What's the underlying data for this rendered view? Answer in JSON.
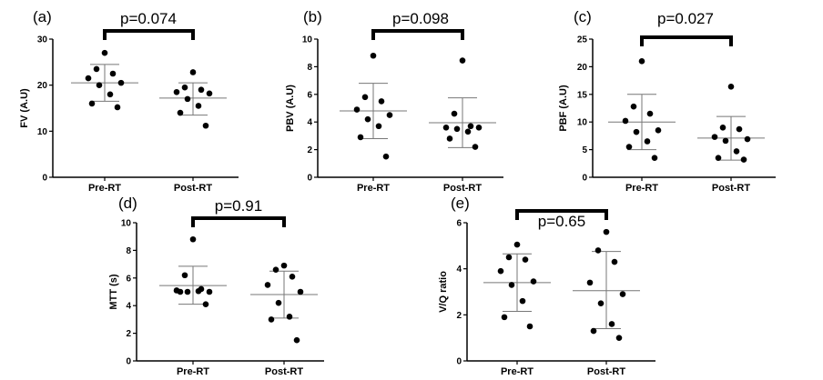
{
  "chart_data": [
    {
      "type": "scatter",
      "panel_label": "(a)",
      "ylabel": "FV (A.U)",
      "categories": [
        "Pre-RT",
        "Post-RT"
      ],
      "ylim": [
        0,
        30
      ],
      "yticks": [
        0,
        10,
        20,
        30
      ],
      "p_value": "p=0.074",
      "series": [
        {
          "name": "Pre-RT",
          "mean": 20.5,
          "sd_low": 16.5,
          "sd_high": 24.5,
          "values": [
            27,
            23.5,
            22.5,
            21.5,
            20.5,
            20,
            18,
            16,
            15.2
          ]
        },
        {
          "name": "Post-RT",
          "mean": 17.2,
          "sd_low": 13.5,
          "sd_high": 20.5,
          "values": [
            22.8,
            19.5,
            19,
            18.5,
            18.2,
            17,
            15.5,
            14,
            11.2
          ]
        }
      ]
    },
    {
      "type": "scatter",
      "panel_label": "(b)",
      "ylabel": "PBV (A.U)",
      "categories": [
        "Pre-RT",
        "Post-RT"
      ],
      "ylim": [
        0,
        10
      ],
      "yticks": [
        0,
        2,
        4,
        6,
        8,
        10
      ],
      "p_value": "p=0.098",
      "series": [
        {
          "name": "Pre-RT",
          "mean": 4.8,
          "sd_low": 2.8,
          "sd_high": 6.8,
          "values": [
            8.8,
            5.8,
            5.5,
            4.9,
            4.5,
            4.2,
            3.7,
            2.9,
            1.5
          ]
        },
        {
          "name": "Post-RT",
          "mean": 3.95,
          "sd_low": 2.15,
          "sd_high": 5.75,
          "values": [
            8.45,
            4.6,
            3.7,
            3.6,
            3.6,
            3.5,
            3.3,
            2.8,
            2.2
          ]
        }
      ]
    },
    {
      "type": "scatter",
      "panel_label": "(c)",
      "ylabel": "PBF (A.U)",
      "categories": [
        "Pre-RT",
        "Post-RT"
      ],
      "ylim": [
        0,
        25
      ],
      "yticks": [
        0,
        5,
        10,
        15,
        20,
        25
      ],
      "p_value": "p=0.027",
      "series": [
        {
          "name": "Pre-RT",
          "mean": 10,
          "sd_low": 5,
          "sd_high": 15,
          "values": [
            21,
            12.8,
            11.5,
            10.2,
            8.5,
            8.2,
            6.5,
            5.5,
            3.5
          ]
        },
        {
          "name": "Post-RT",
          "mean": 7.1,
          "sd_low": 3.1,
          "sd_high": 11,
          "values": [
            16.4,
            9,
            8.7,
            7.3,
            6.9,
            6.6,
            4.7,
            3.5,
            3.2
          ]
        }
      ]
    },
    {
      "type": "scatter",
      "panel_label": "(d)",
      "ylabel": "MTT (s)",
      "categories": [
        "Pre-RT",
        "Post-RT"
      ],
      "ylim": [
        0,
        10
      ],
      "yticks": [
        0,
        2,
        4,
        6,
        8,
        10
      ],
      "p_value": "p=0.91",
      "series": [
        {
          "name": "Pre-RT",
          "mean": 5.45,
          "sd_low": 4.1,
          "sd_high": 6.85,
          "values": [
            8.8,
            6.2,
            5.2,
            5.1,
            5.0,
            5.0,
            5.05,
            5.0,
            4.1
          ]
        },
        {
          "name": "Post-RT",
          "mean": 4.8,
          "sd_low": 3.1,
          "sd_high": 6.5,
          "values": [
            6.9,
            6.6,
            6.1,
            5.5,
            5.0,
            4.2,
            3.2,
            3.0,
            1.5
          ]
        }
      ]
    },
    {
      "type": "scatter",
      "panel_label": "(e)",
      "ylabel": "V/Q ratio",
      "categories": [
        "Pre-RT",
        "Post-RT"
      ],
      "ylim": [
        0,
        6
      ],
      "yticks": [
        0,
        2,
        4,
        6
      ],
      "p_value": "p=0.65",
      "series": [
        {
          "name": "Pre-RT",
          "mean": 3.4,
          "sd_low": 2.15,
          "sd_high": 4.65,
          "values": [
            5.05,
            4.5,
            4.4,
            3.9,
            3.45,
            3.3,
            2.6,
            1.9,
            1.5
          ]
        },
        {
          "name": "Post-RT",
          "mean": 3.05,
          "sd_low": 1.4,
          "sd_high": 4.75,
          "values": [
            5.6,
            4.8,
            4.3,
            3.4,
            2.9,
            2.5,
            1.6,
            1.3,
            1.0
          ]
        }
      ]
    }
  ]
}
